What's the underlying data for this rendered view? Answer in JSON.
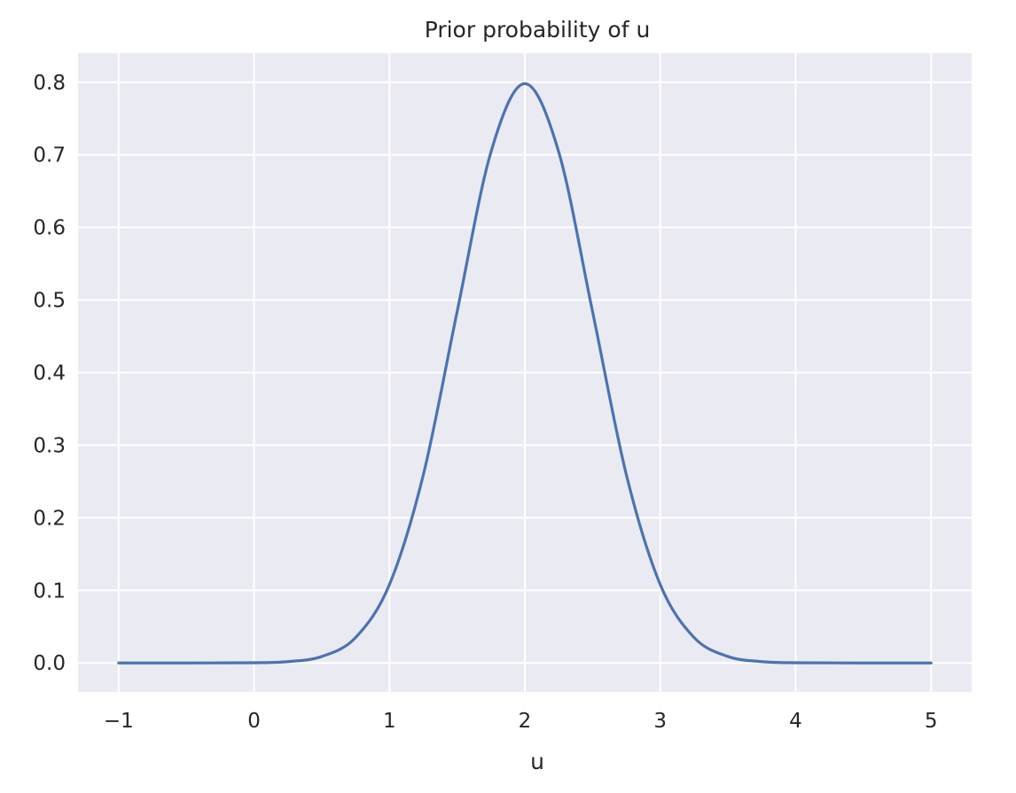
{
  "chart_data": {
    "type": "line",
    "title": "Prior probability of u",
    "xlabel": "u",
    "ylabel": "",
    "xlim": [
      -1.3,
      5.3
    ],
    "ylim": [
      -0.04,
      0.84
    ],
    "xticks": [
      -1,
      0,
      1,
      2,
      3,
      4,
      5
    ],
    "xtick_labels": [
      "−1",
      "0",
      "1",
      "2",
      "3",
      "4",
      "5"
    ],
    "yticks": [
      0.0,
      0.1,
      0.2,
      0.3,
      0.4,
      0.5,
      0.6,
      0.7,
      0.8
    ],
    "ytick_labels": [
      "0.0",
      "0.1",
      "0.2",
      "0.3",
      "0.4",
      "0.5",
      "0.6",
      "0.7",
      "0.8"
    ],
    "grid": true,
    "background_color": "#eaeaf2",
    "grid_color": "#ffffff",
    "series": [
      {
        "color": "#4c72b0",
        "x": [
          -1.0,
          -0.5,
          0.0,
          0.25,
          0.5,
          0.75,
          1.0,
          1.25,
          1.5,
          1.75,
          2.0,
          2.25,
          2.5,
          2.75,
          3.0,
          3.25,
          3.5,
          3.75,
          4.0,
          4.5,
          5.0
        ],
        "y": [
          0.0,
          0.0,
          0.0003,
          0.0018,
          0.0089,
          0.035,
          0.108,
          0.259,
          0.484,
          0.704,
          0.798,
          0.704,
          0.484,
          0.259,
          0.108,
          0.035,
          0.0089,
          0.0018,
          0.0003,
          0.0,
          0.0
        ]
      }
    ]
  }
}
